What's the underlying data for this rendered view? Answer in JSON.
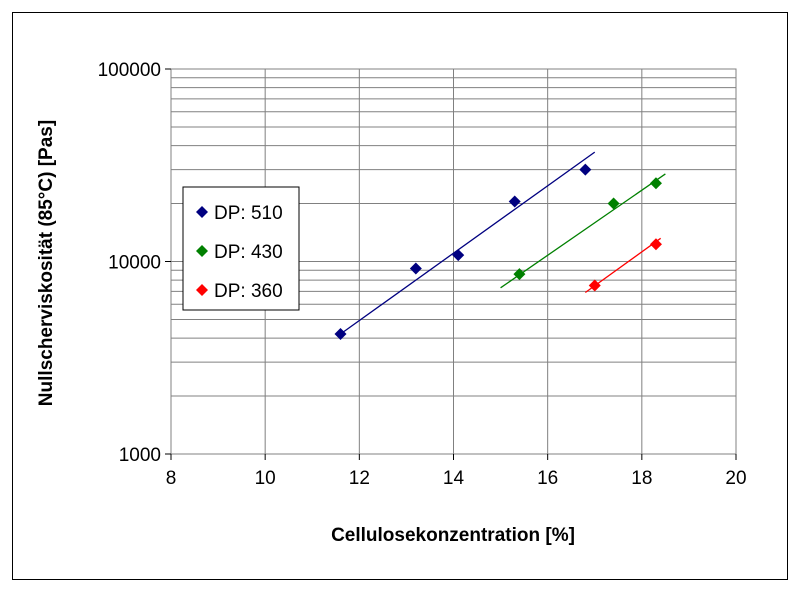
{
  "chart_data": {
    "type": "scatter",
    "xlabel": "Cellulosekonzentration [%]",
    "ylabel": "Nullscherviskosität (85°C) [Pas]",
    "xlim": [
      8,
      20
    ],
    "ylim": [
      1000,
      100000
    ],
    "yscale": "log",
    "xticks": [
      "8",
      "10",
      "12",
      "14",
      "16",
      "18",
      "20"
    ],
    "yticks": [
      "1000",
      "10000",
      "100000"
    ],
    "grid": true,
    "legend_position": "left",
    "series": [
      {
        "name": "DP: 510",
        "color": "#000080",
        "points": [
          {
            "x": 11.6,
            "y": 4200
          },
          {
            "x": 13.2,
            "y": 9200
          },
          {
            "x": 14.1,
            "y": 10800
          },
          {
            "x": 15.3,
            "y": 20500
          },
          {
            "x": 16.8,
            "y": 30000
          }
        ],
        "trendline": {
          "x": [
            11.6,
            17.0
          ],
          "y": [
            4200,
            37000
          ]
        }
      },
      {
        "name": "DP: 430",
        "color": "#008000",
        "points": [
          {
            "x": 15.4,
            "y": 8600
          },
          {
            "x": 17.4,
            "y": 20000
          },
          {
            "x": 18.3,
            "y": 25500
          }
        ],
        "trendline": {
          "x": [
            15.0,
            18.5
          ],
          "y": [
            7300,
            28500
          ]
        }
      },
      {
        "name": "DP: 360",
        "color": "#ff0000",
        "points": [
          {
            "x": 17.0,
            "y": 7500
          },
          {
            "x": 18.3,
            "y": 12300
          }
        ],
        "trendline": {
          "x": [
            16.8,
            18.4
          ],
          "y": [
            6900,
            13200
          ]
        }
      }
    ]
  }
}
